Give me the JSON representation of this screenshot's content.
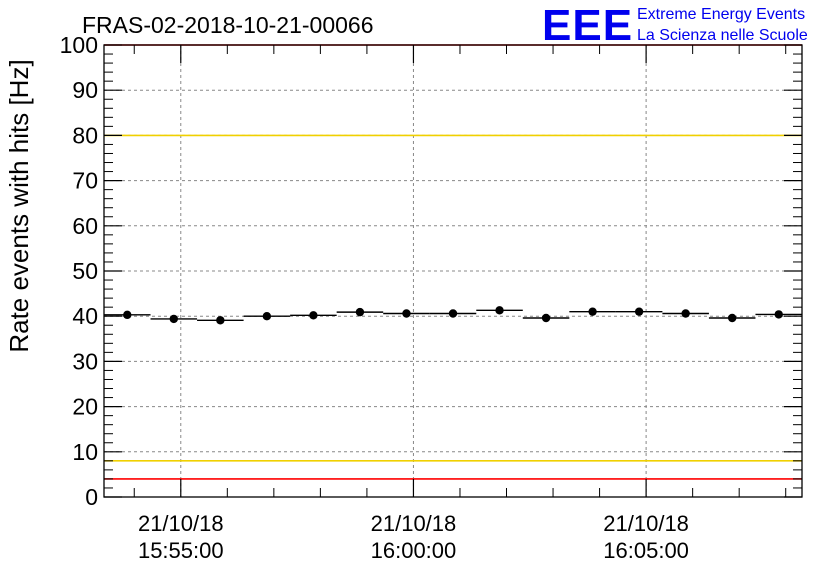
{
  "chart_data": {
    "type": "scatter",
    "title": "FRAS-02-2018-10-21-00066",
    "ylabel": "Rate events with hits [Hz]",
    "ylim": [
      0,
      100
    ],
    "y_ticks": [
      0,
      10,
      20,
      30,
      40,
      50,
      60,
      70,
      80,
      90,
      100
    ],
    "x_range_minutes": [
      -1.65,
      13.35
    ],
    "x_ticks": [
      {
        "minute": 0,
        "date": "21/10/18",
        "time": "15:55:00"
      },
      {
        "minute": 5,
        "date": "21/10/18",
        "time": "16:00:00"
      },
      {
        "minute": 10,
        "date": "21/10/18",
        "time": "16:05:00"
      }
    ],
    "bin_width_minutes": 1,
    "points": [
      {
        "x": -1.15,
        "y": 40.3
      },
      {
        "x": -0.15,
        "y": 39.4
      },
      {
        "x": 0.85,
        "y": 39.1
      },
      {
        "x": 1.85,
        "y": 40.0
      },
      {
        "x": 2.85,
        "y": 40.2
      },
      {
        "x": 3.85,
        "y": 40.9
      },
      {
        "x": 4.85,
        "y": 40.6
      },
      {
        "x": 5.85,
        "y": 40.6
      },
      {
        "x": 6.85,
        "y": 41.3
      },
      {
        "x": 7.85,
        "y": 39.6
      },
      {
        "x": 8.85,
        "y": 41.0
      },
      {
        "x": 9.85,
        "y": 41.0
      },
      {
        "x": 10.85,
        "y": 40.6
      },
      {
        "x": 11.85,
        "y": 39.6
      },
      {
        "x": 12.85,
        "y": 40.4
      }
    ],
    "reference_lines": [
      {
        "y": 100,
        "color": "#ff0000"
      },
      {
        "y": 80,
        "color": "#f0d000"
      },
      {
        "y": 8,
        "color": "#f0d000"
      },
      {
        "y": 4,
        "color": "#ff0000"
      }
    ],
    "grid": true
  },
  "logo": {
    "mark": "EEE",
    "line1": "Extreme Energy Events",
    "line2": "La Scienza nelle Scuole",
    "color": "#0000ee"
  }
}
